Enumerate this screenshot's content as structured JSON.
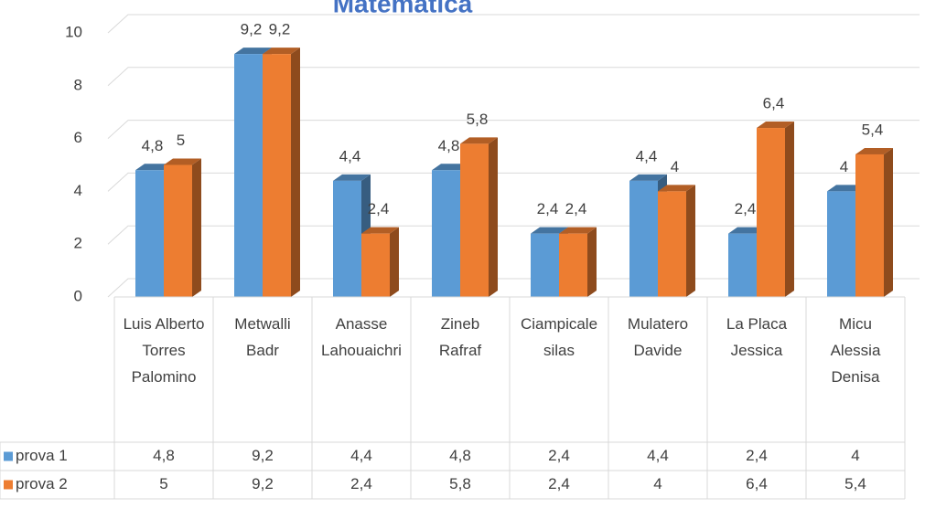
{
  "chart_data": {
    "type": "bar3d",
    "title": "Matematica",
    "categories": [
      "Luis Alberto Torres Palomino",
      "Metwalli Badr",
      "Anasse Lahouaichri",
      "Zineb Rafraf",
      "Ciampicale silas",
      "Mulatero Davide",
      "La Placa Jessica",
      "Micu Alessia Denisa"
    ],
    "series": [
      {
        "name": "prova 1",
        "color": "#5b9bd5",
        "values": [
          4.8,
          9.2,
          4.4,
          4.8,
          2.4,
          4.4,
          2.4,
          4
        ],
        "value_labels": [
          "4,8",
          "9,2",
          "4,4",
          "4,8",
          "2,4",
          "4,4",
          "2,4",
          "4"
        ]
      },
      {
        "name": "prova 2",
        "color": "#ed7d31",
        "values": [
          5,
          9.2,
          2.4,
          5.8,
          2.4,
          4,
          6.4,
          5.4
        ],
        "value_labels": [
          "5",
          "9,2",
          "2,4",
          "5,8",
          "2,4",
          "4",
          "6,4",
          "5,4"
        ]
      }
    ],
    "ylim": [
      0,
      10
    ],
    "yticks": [
      0,
      2,
      4,
      6,
      8,
      10
    ],
    "grid": true,
    "data_table": true
  }
}
